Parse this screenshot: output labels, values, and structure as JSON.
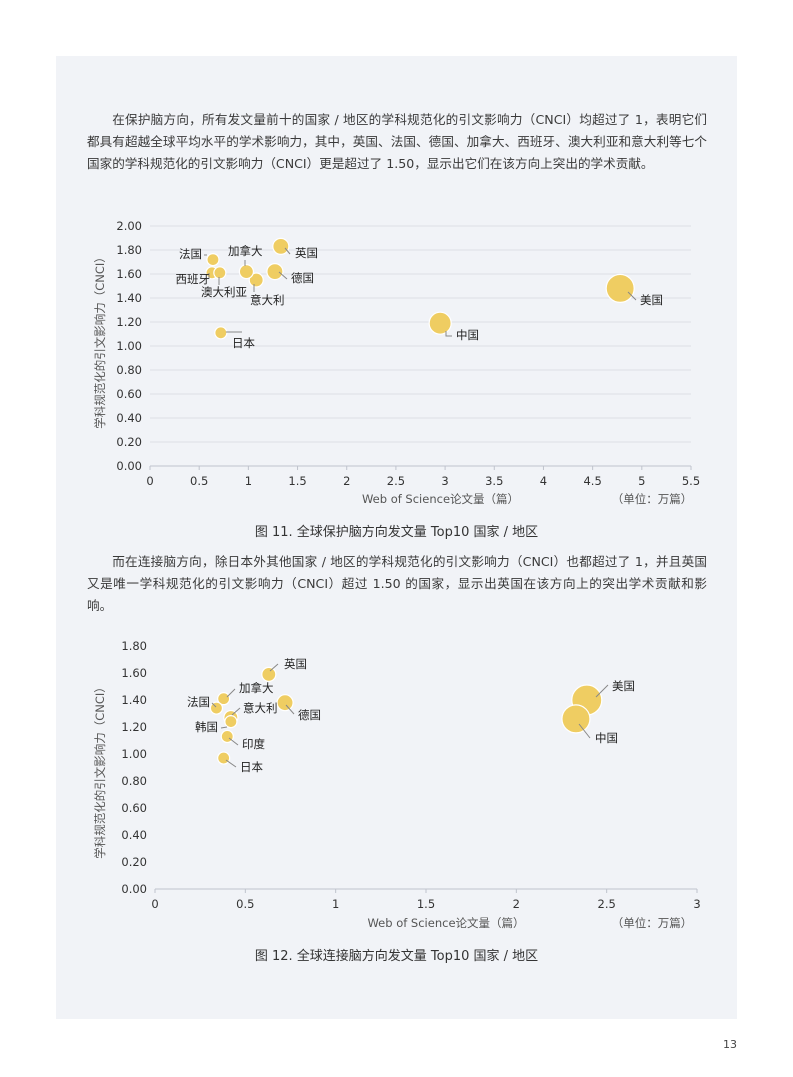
{
  "paragraphs": {
    "p1": "在保护脑方向，所有发文量前十的国家 / 地区的学科规范化的引文影响力（CNCI）均超过了 1，表明它们都具有超越全球平均水平的学术影响力，其中，英国、法国、德国、加拿大、西班牙、澳大利亚和意大利等七个国家的学科规范化的引文影响力（CNCI）更是超过了 1.50，显示出它们在该方向上突出的学术贡献。",
    "p2": "而在连接脑方向，除日本外其他国家 / 地区的学科规范化的引文影响力（CNCI）也都超过了 1，并且英国又是唯一学科规范化的引文影响力（CNCI）超过 1.50 的国家，显示出英国在该方向上的突出学术贡献和影响。"
  },
  "captions": {
    "fig11": "图 11. 全球保护脑方向发文量 Top10 国家 / 地区",
    "fig12": "图 12. 全球连接脑方向发文量 Top10 国家 / 地区"
  },
  "page_number": "13",
  "colors": {
    "bubble": "#efcd62",
    "bubble_stroke": "#ffffff",
    "panel": "#f1f3f7",
    "grid": "#d6d9e0",
    "leader": "#888888"
  },
  "chart_data": [
    {
      "type": "scatter",
      "xlabel": "Web of Science论文量（篇）",
      "ylabel": "学科规范化的引文影响力（CNCI）",
      "unit": "（单位：万篇）",
      "xlim": [
        0,
        5.5
      ],
      "ylim": [
        0,
        2.0
      ],
      "x_ticks": [
        "0",
        "0.5",
        "1",
        "1.5",
        "2",
        "2.5",
        "3",
        "3.5",
        "4",
        "4.5",
        "5",
        "5.5"
      ],
      "y_ticks": [
        "0.00",
        "0.20",
        "0.40",
        "0.60",
        "0.80",
        "1.00",
        "1.20",
        "1.40",
        "1.60",
        "1.80",
        "2.00"
      ],
      "grid": "horizontal",
      "points": [
        {
          "label": "美国",
          "x": 4.78,
          "y": 1.48
        },
        {
          "label": "中国",
          "x": 2.95,
          "y": 1.19
        },
        {
          "label": "英国",
          "x": 1.33,
          "y": 1.83
        },
        {
          "label": "德国",
          "x": 1.27,
          "y": 1.62
        },
        {
          "label": "意大利",
          "x": 1.08,
          "y": 1.55
        },
        {
          "label": "加拿大",
          "x": 0.98,
          "y": 1.62
        },
        {
          "label": "法国",
          "x": 0.64,
          "y": 1.72
        },
        {
          "label": "西班牙",
          "x": 0.63,
          "y": 1.61
        },
        {
          "label": "澳大利亚",
          "x": 0.71,
          "y": 1.61
        },
        {
          "label": "日本",
          "x": 0.72,
          "y": 1.11
        }
      ]
    },
    {
      "type": "scatter",
      "xlabel": "Web of Science论文量（篇）",
      "ylabel": "学科规范化的引文影响力（CNCI）",
      "unit": "（单位：万篇）",
      "xlim": [
        0,
        3
      ],
      "ylim": [
        0,
        1.8
      ],
      "x_ticks": [
        "0",
        "0.5",
        "1",
        "1.5",
        "2",
        "2.5",
        "3"
      ],
      "y_ticks": [
        "0.00",
        "0.20",
        "0.40",
        "0.60",
        "0.80",
        "1.00",
        "1.20",
        "1.40",
        "1.60",
        "1.80"
      ],
      "grid": "none",
      "points": [
        {
          "label": "美国",
          "x": 2.39,
          "y": 1.4
        },
        {
          "label": "中国",
          "x": 2.33,
          "y": 1.26
        },
        {
          "label": "英国",
          "x": 0.63,
          "y": 1.59
        },
        {
          "label": "德国",
          "x": 0.72,
          "y": 1.38
        },
        {
          "label": "加拿大",
          "x": 0.38,
          "y": 1.41
        },
        {
          "label": "法国",
          "x": 0.34,
          "y": 1.34
        },
        {
          "label": "意大利",
          "x": 0.42,
          "y": 1.27
        },
        {
          "label": "韩国",
          "x": 0.42,
          "y": 1.24
        },
        {
          "label": "印度",
          "x": 0.4,
          "y": 1.13
        },
        {
          "label": "日本",
          "x": 0.38,
          "y": 0.97
        }
      ]
    }
  ]
}
